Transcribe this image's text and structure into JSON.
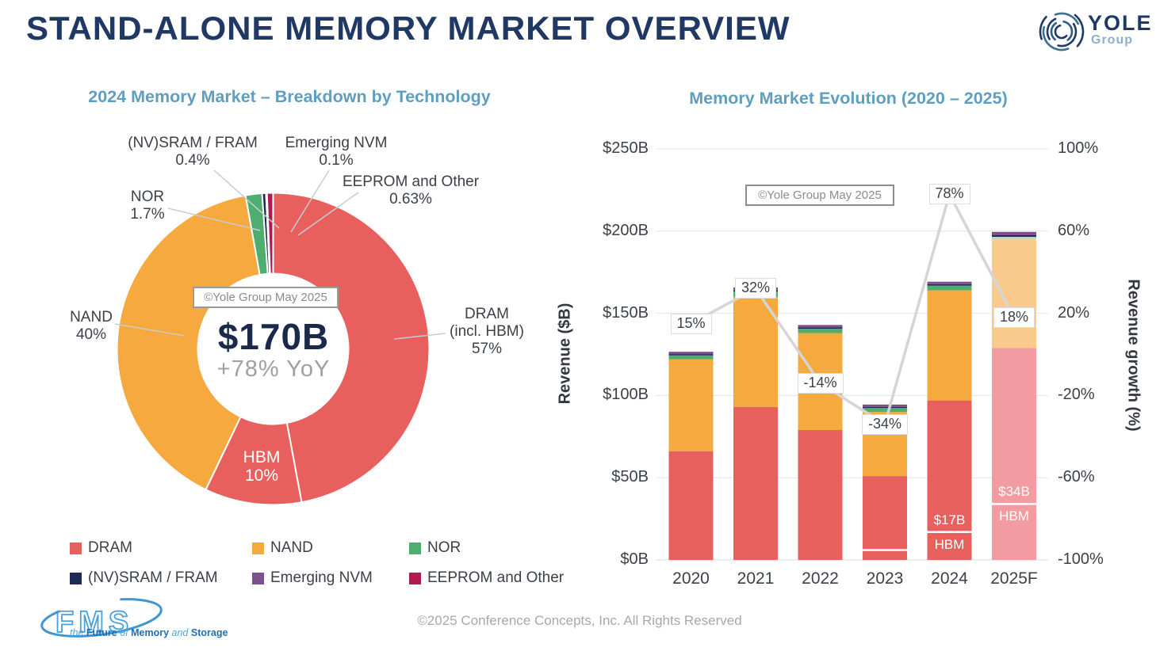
{
  "header": {
    "title": "STAND-ALONE MEMORY MARKET OVERVIEW"
  },
  "logos": {
    "yole": {
      "name": "YOLE",
      "sub": "Group"
    },
    "fms": {
      "name": "FMS",
      "tagline": [
        {
          "text": "the ",
          "style": "it"
        },
        {
          "text": "Future ",
          "style": "b"
        },
        {
          "text": "of ",
          "style": "it"
        },
        {
          "text": "Memory ",
          "style": "b"
        },
        {
          "text": "and ",
          "style": "it"
        },
        {
          "text": "Storage",
          "style": "b"
        }
      ]
    }
  },
  "footer": {
    "copyright": "©2025 Conference Concepts, Inc. All Rights Reserved"
  },
  "chart_data": [
    {
      "type": "pie",
      "variant": "donut",
      "title": "2024 Memory Market – Breakdown by Technology",
      "center": {
        "watermark": "©Yole Group May 2025",
        "value": "$170B",
        "growth": "+78% YoY"
      },
      "wedges": [
        {
          "id": "dram",
          "label": "DRAM (excl. HBM portion)",
          "pct": 47.0,
          "color": "#E8605D"
        },
        {
          "id": "hbm",
          "label": "HBM",
          "pct": 10.0,
          "color": "#E8605D",
          "inner_label": [
            "HBM",
            "10%"
          ]
        },
        {
          "id": "nand",
          "label": "NAND",
          "pct": 40.0,
          "color": "#F5A93E"
        },
        {
          "id": "nor",
          "label": "NOR",
          "pct": 1.7,
          "color": "#4DAE6F"
        },
        {
          "id": "sram_fram",
          "label": "(NV)SRAM / FRAM",
          "pct": 0.4,
          "color": "#1F2B52"
        },
        {
          "id": "emerging_nvm",
          "label": "Emerging NVM",
          "pct": 0.1,
          "color": "#7D4F8F"
        },
        {
          "id": "eeprom_other",
          "label": "EEPROM and Other",
          "pct": 0.63,
          "color": "#B01A4E"
        }
      ],
      "callouts": [
        {
          "id": "sram_fram",
          "lines": [
            "(NV)SRAM / FRAM",
            "0.4%"
          ]
        },
        {
          "id": "emerging_nvm",
          "lines": [
            "Emerging NVM",
            "0.1%"
          ]
        },
        {
          "id": "eeprom_other",
          "lines": [
            "EEPROM and Other",
            "0.63%"
          ]
        },
        {
          "id": "nor",
          "lines": [
            "NOR",
            "1.7%"
          ]
        },
        {
          "id": "nand",
          "lines": [
            "NAND",
            "40%"
          ]
        },
        {
          "id": "dram",
          "lines": [
            "DRAM",
            "(incl. HBM)",
            "57%"
          ]
        }
      ],
      "legend": [
        {
          "label": "DRAM",
          "color": "#E8605D"
        },
        {
          "label": "NAND",
          "color": "#F5A93E"
        },
        {
          "label": "NOR",
          "color": "#4DAE6F"
        },
        {
          "label": "(NV)SRAM / FRAM",
          "color": "#1F2B52"
        },
        {
          "label": "Emerging NVM",
          "color": "#7D4F8F"
        },
        {
          "label": "EEPROM and Other",
          "color": "#B01A4E"
        }
      ]
    },
    {
      "type": "bar",
      "variant": "stacked-columns-with-growth-line",
      "title": "Memory Market Evolution (2020 – 2025)",
      "watermark": "©Yole Group May 2025",
      "categories": [
        "2020",
        "2021",
        "2022",
        "2023",
        "2024",
        "2025F"
      ],
      "ylabel_left": "Revenue ($B)",
      "ylabel_right": "Revenue growth (%)",
      "yticks_left": [
        "$0B",
        "$50B",
        "$100B",
        "$150B",
        "$200B",
        "$250B"
      ],
      "yticks_right": [
        "-100%",
        "-60%",
        "-20%",
        "20%",
        "60%",
        "100%"
      ],
      "ylim_left": [
        0,
        250
      ],
      "ylim_right": [
        -100,
        100
      ],
      "grid": true,
      "series": [
        {
          "name": "DRAM",
          "values": [
            66,
            93,
            79,
            51,
            97,
            129
          ],
          "colors": [
            "#E8605D",
            "#E8605D",
            "#E8605D",
            "#E8605D",
            "#E8605D",
            "#F29BA0"
          ]
        },
        {
          "name": "NAND",
          "values": [
            56,
            67,
            59,
            39,
            67,
            66
          ],
          "colors": [
            "#F5A93E",
            "#F5A93E",
            "#F5A93E",
            "#F5A93E",
            "#F5A93E",
            "#F9CA8B"
          ]
        },
        {
          "name": "NOR",
          "values": [
            2.4,
            3.2,
            2.6,
            2.4,
            2.9,
            1.5
          ],
          "colors": [
            "#4DAE6F",
            "#4DAE6F",
            "#4DAE6F",
            "#4DAE6F",
            "#4DAE6F",
            "#AFDCC3"
          ]
        },
        {
          "name": "(NV)SRAM / FRAM",
          "values": [
            0.8,
            0.9,
            0.8,
            0.7,
            0.8,
            1.0
          ],
          "colors": [
            "#1F2B52",
            "#1F2B52",
            "#1F2B52",
            "#1F2B52",
            "#1F2B52",
            "#1F2B52"
          ]
        },
        {
          "name": "Emerging NVM",
          "values": [
            1.4,
            1.6,
            1.5,
            1.4,
            1.5,
            2.0
          ],
          "colors": [
            "#7D4F8F",
            "#7D4F8F",
            "#7D4F8F",
            "#7D4F8F",
            "#7D4F8F",
            "#7D4F8F"
          ]
        }
      ],
      "hbm_split": {
        "values": [
          null,
          null,
          null,
          6,
          17,
          34
        ],
        "labels": [
          null,
          null,
          null,
          null,
          [
            "$17B",
            "HBM"
          ],
          [
            "$34B",
            "HBM"
          ]
        ]
      },
      "growth_line": {
        "name": "Revenue growth",
        "values_pct": [
          15,
          32,
          -14,
          -34,
          78,
          18
        ],
        "labels": [
          "15%",
          "32%",
          "-14%",
          "-34%",
          "78%",
          "18%"
        ],
        "color": "#D5D5D5"
      }
    }
  ]
}
